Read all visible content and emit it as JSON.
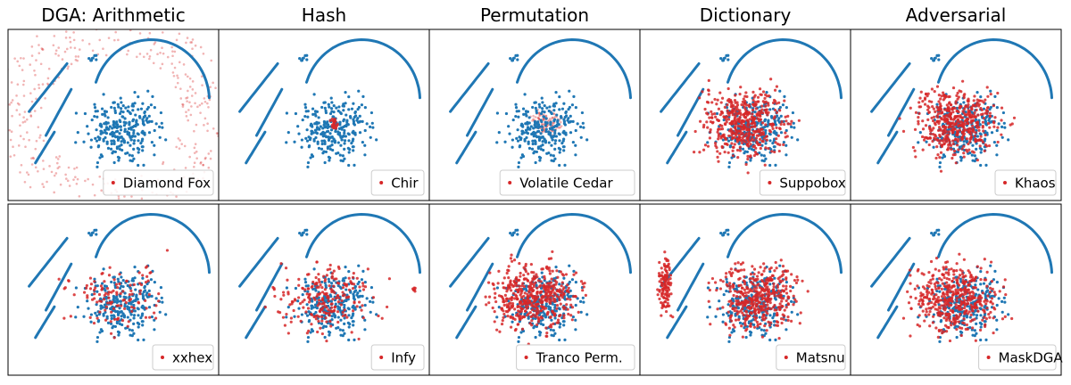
{
  "chart_data": {
    "type": "scatter",
    "layout": {
      "rows": 2,
      "cols": 5
    },
    "columns": [
      "DGA: Arithmetic",
      "Hash",
      "Permutation",
      "Dictionary",
      "Adversarial"
    ],
    "colors": {
      "background_series": "#1f77b4",
      "dga_series": "#d62728",
      "frame": "#000000"
    },
    "background_series": {
      "name": "",
      "color": "#1f77b4"
    },
    "panels": [
      {
        "row": 0,
        "col": 0,
        "legend": "Diamond Fox",
        "legend_position": "lower-right",
        "pattern": "ring"
      },
      {
        "row": 0,
        "col": 1,
        "legend": "Chir",
        "legend_position": "lower-right",
        "pattern": "tight-cluster"
      },
      {
        "row": 0,
        "col": 2,
        "legend": "Volatile Cedar",
        "legend_position": "lower-right",
        "pattern": "faint-center"
      },
      {
        "row": 0,
        "col": 3,
        "legend": "Suppobox",
        "legend_position": "lower-right",
        "pattern": "dense"
      },
      {
        "row": 0,
        "col": 4,
        "legend": "Khaos",
        "legend_position": "lower-right",
        "pattern": "dense"
      },
      {
        "row": 1,
        "col": 0,
        "legend": "xxhex",
        "legend_position": "lower-right",
        "pattern": "sparse"
      },
      {
        "row": 1,
        "col": 1,
        "legend": "Infy",
        "legend_position": "lower-right",
        "pattern": "clusters"
      },
      {
        "row": 1,
        "col": 2,
        "legend": "Tranco Perm.",
        "legend_position": "lower-right",
        "pattern": "dense"
      },
      {
        "row": 1,
        "col": 3,
        "legend": "Matsnu",
        "legend_position": "lower-right",
        "pattern": "dense-left"
      },
      {
        "row": 1,
        "col": 4,
        "legend": "MaskDGA",
        "legend_position": "lower-right",
        "pattern": "dense"
      }
    ],
    "grid": false,
    "axes_ticks": false
  }
}
